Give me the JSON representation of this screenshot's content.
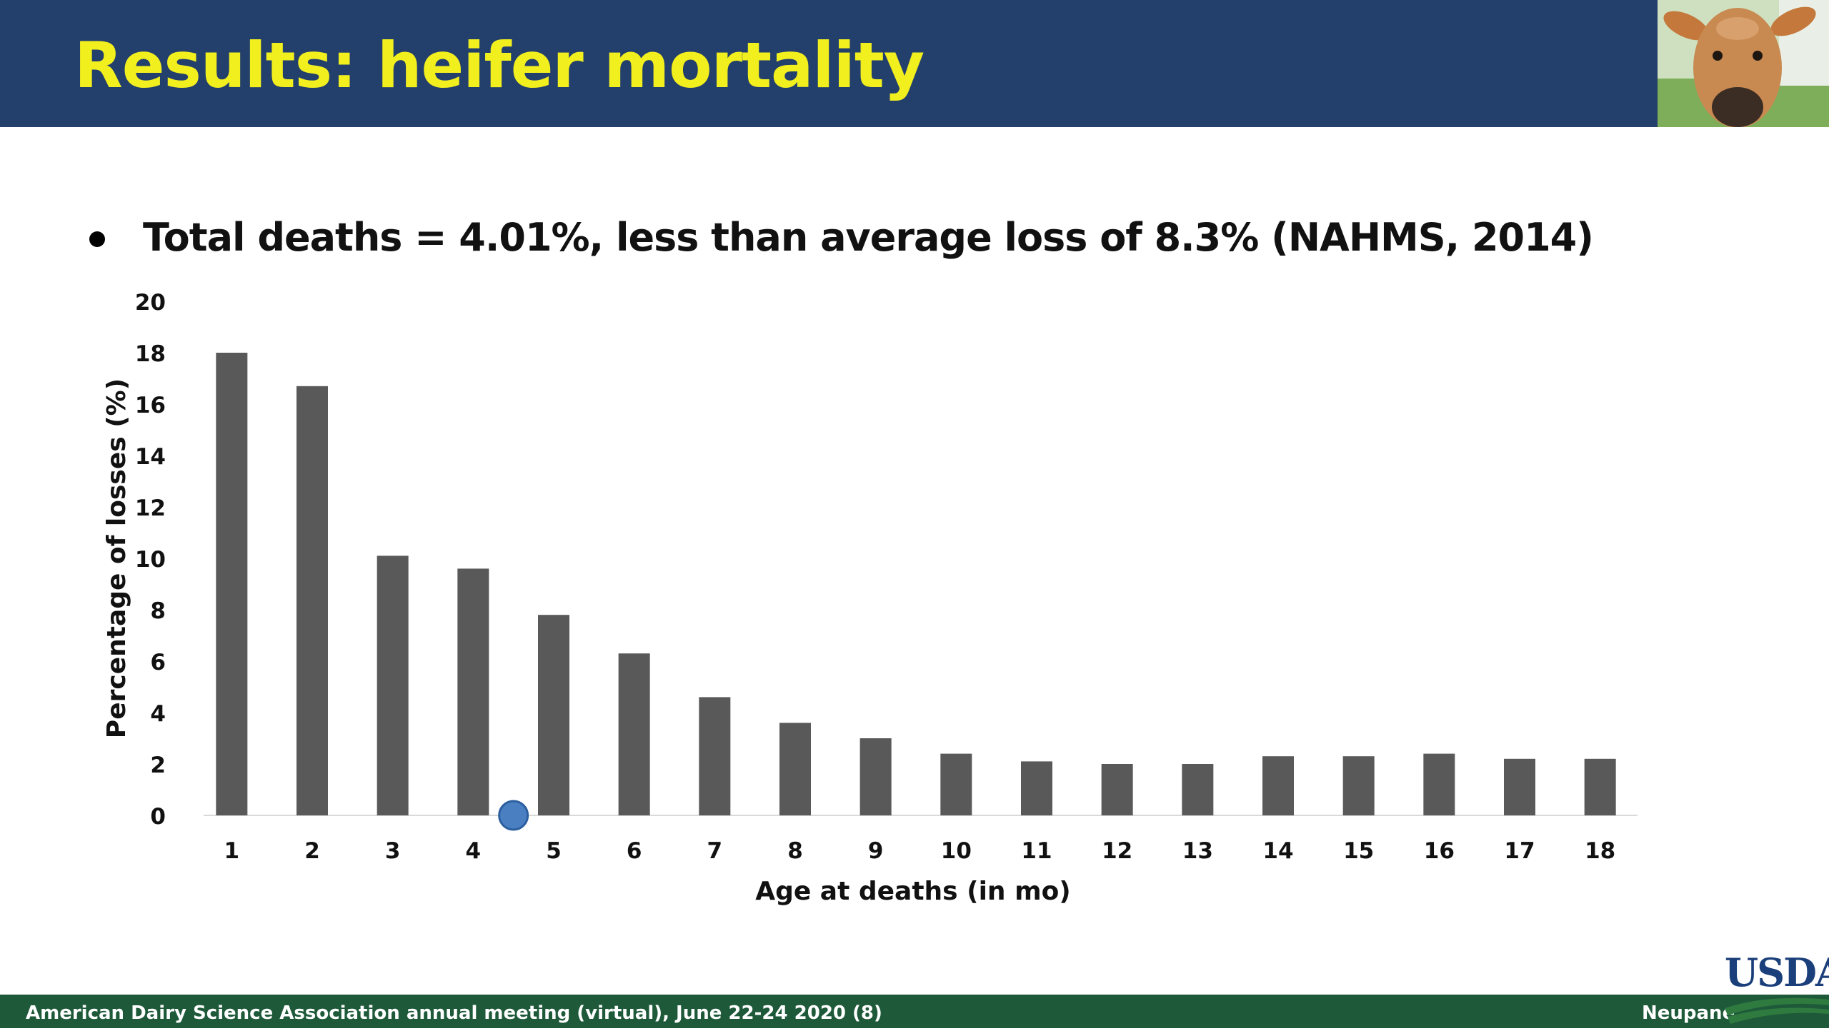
{
  "slide": {
    "title": "Results: heifer mortality",
    "bullet": "Total deaths = 4.01%, less than average loss of 8.3% (NAHMS, 2014)",
    "footer": "American Dairy Science Association annual meeting (virtual), June 22-24 2020 (8)",
    "presenter": "Neupane",
    "logo_text": "USDA"
  },
  "colors": {
    "header": "#233f6b",
    "title": "#f2ef1f",
    "bar": "#595959",
    "marker": "#4a7fc1",
    "footer": "#1e5a3a"
  },
  "chart_data": {
    "type": "bar",
    "categories": [
      "1",
      "2",
      "3",
      "4",
      "5",
      "6",
      "7",
      "8",
      "9",
      "10",
      "11",
      "12",
      "13",
      "14",
      "15",
      "16",
      "17",
      "18"
    ],
    "values": [
      18.0,
      16.7,
      10.1,
      9.6,
      7.8,
      6.3,
      4.6,
      3.6,
      3.0,
      2.4,
      2.1,
      2.0,
      2.0,
      2.3,
      2.3,
      2.4,
      2.2,
      2.2
    ],
    "xlabel": "Age at deaths (in mo)",
    "ylabel": "Percentage of losses (%)",
    "ylim": [
      0,
      20
    ],
    "yticks": [
      "0",
      "2",
      "4",
      "6",
      "8",
      "10",
      "12",
      "14",
      "16",
      "18",
      "20"
    ],
    "grid": false,
    "annotation_marker": {
      "x": 4.5,
      "y": 0,
      "shape": "circle"
    }
  }
}
